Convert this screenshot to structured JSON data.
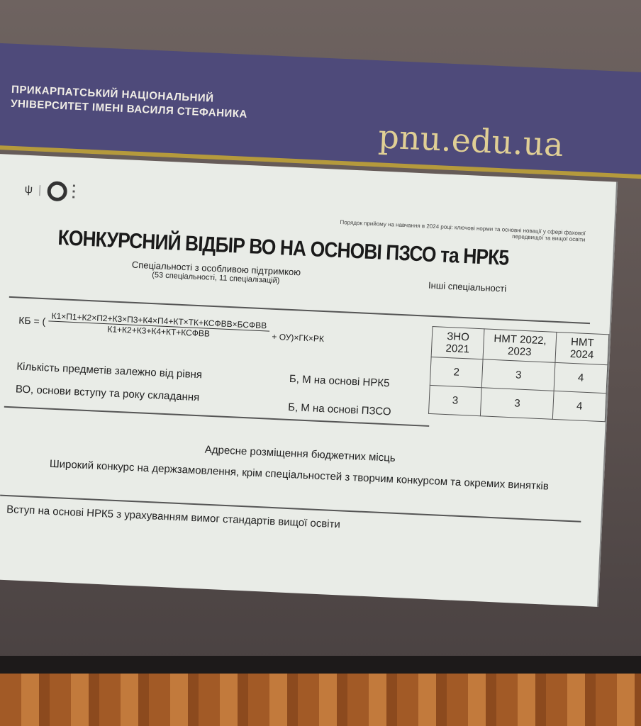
{
  "banner": {
    "university_line1": "ПРИКАРПАТСЬКИЙ НАЦІОНАЛЬНИЙ",
    "university_line2": "УНІВЕРСИТЕТ ІМЕНІ ВАСИЛЯ СТЕФАНИКА",
    "site": "pnu.edu.ua",
    "color": "#4e4a7a",
    "accent": "#b59a3c"
  },
  "slide": {
    "note": "Порядок прийому на навчання в 2024 році: ключові норми та основні новації у сфері фахової передвищої та вищої освіти",
    "title": "КОНКУРСНИЙ ВІДБІР ВО НА ОСНОВІ ПЗСО та НРК5",
    "col_special": "Спеціальності з особливою підтримкою",
    "col_special_sub": "(53 спеціальності, 11 спеціалізацій)",
    "col_other": "Інші спеціальності",
    "formula": {
      "lhs": "КБ = (",
      "numerator": "К1×П1+К2×П2+К3×П3+К4×П4+КТ×ТК+КСФВВ×БСФВВ",
      "denominator": "К1+К2+К3+К4+КТ+КСФВВ",
      "tail": "+ ОУ)×ГК×РК"
    },
    "table": {
      "headers": [
        "ЗНО 2021",
        "НМТ 2022, 2023",
        "НМТ 2024"
      ],
      "row_label_1": "Кількість предметів залежно від рівня",
      "row_label_2": "ВО, основи вступу та року складання",
      "rows": [
        {
          "label": "Б, М на основі НРК5",
          "values": [
            "2",
            "3",
            "4"
          ]
        },
        {
          "label": "Б, М на основі ПЗСО",
          "values": [
            "3",
            "3",
            "4"
          ]
        }
      ]
    },
    "bullets": [
      "Адресне розміщення бюджетних місць",
      "Широкий конкурс на держзамовлення, крім спеціальностей з творчим конкурсом та окремих винятків",
      "Вступ на основі НРК5 з урахуванням вимог стандартів вищої освіти"
    ]
  }
}
